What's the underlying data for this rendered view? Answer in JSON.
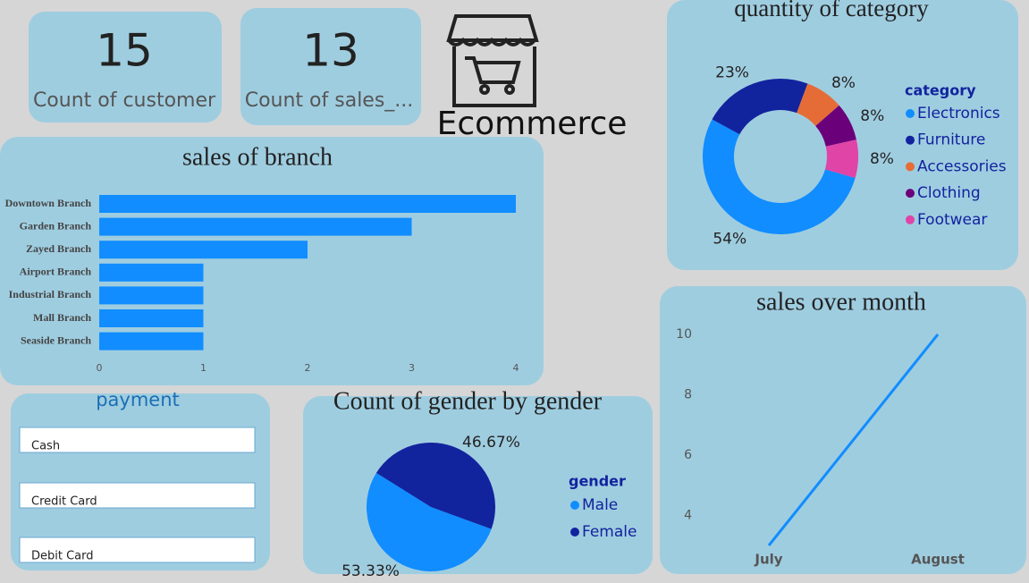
{
  "cards": [
    {
      "value": 15,
      "label": "Count of customer"
    },
    {
      "value": 13,
      "label": "Count of sales_..."
    }
  ],
  "logo": {
    "text": "Ecommerce"
  },
  "slicer": {
    "title": "payment",
    "items": [
      "Cash",
      "Credit Card",
      "Debit Card"
    ]
  },
  "chart_data": [
    {
      "type": "bar",
      "orientation": "horizontal",
      "title": "sales of branch",
      "categories": [
        "Downtown Branch",
        "Garden Branch",
        "Zayed Branch",
        "Airport Branch",
        "Industrial Branch",
        "Mall Branch",
        "Seaside Branch"
      ],
      "values": [
        4,
        3,
        2,
        1,
        1,
        1,
        1
      ],
      "color": "#118DFF",
      "xlim": [
        0,
        4
      ],
      "xticks": [
        0,
        1,
        2,
        3,
        4
      ],
      "grid": false
    },
    {
      "type": "donut",
      "title": "quantity of category",
      "legend_title": "category",
      "categories": [
        "Electronics",
        "Furniture",
        "Accessories",
        "Clothing",
        "Footwear"
      ],
      "values": [
        54,
        23,
        8,
        8,
        8
      ],
      "value_labels": [
        "54%",
        "23%",
        "8%",
        "8%",
        "8%"
      ],
      "colors": [
        "#118DFF",
        "#12239E",
        "#E66C37",
        "#6B007B",
        "#E044A7"
      ]
    },
    {
      "type": "pie",
      "title": "Count of gender by gender",
      "legend_title": "gender",
      "categories": [
        "Male",
        "Female"
      ],
      "values": [
        53.33,
        46.67
      ],
      "value_labels": [
        "53.33%",
        "46.67%"
      ],
      "colors": [
        "#118DFF",
        "#12239E"
      ]
    },
    {
      "type": "line",
      "title": "sales over month",
      "categories": [
        "July",
        "August"
      ],
      "values": [
        3,
        10
      ],
      "color": "#118DFF",
      "ylim": [
        3,
        10
      ],
      "yticks": [
        4,
        6,
        8,
        10
      ],
      "grid": false
    }
  ]
}
